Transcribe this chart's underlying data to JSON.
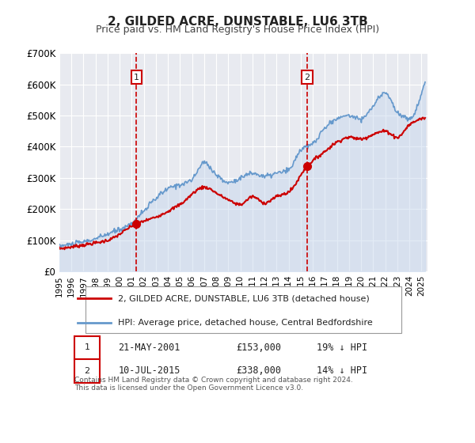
{
  "title": "2, GILDED ACRE, DUNSTABLE, LU6 3TB",
  "subtitle": "Price paid vs. HM Land Registry's House Price Index (HPI)",
  "legend_label_red": "2, GILDED ACRE, DUNSTABLE, LU6 3TB (detached house)",
  "legend_label_blue": "HPI: Average price, detached house, Central Bedfordshire",
  "annotation1_label": "1",
  "annotation1_date": "21-MAY-2001",
  "annotation1_price": "£153,000",
  "annotation1_hpi": "19% ↓ HPI",
  "annotation1_year": 2001.39,
  "annotation1_value": 153000,
  "annotation2_label": "2",
  "annotation2_date": "10-JUL-2015",
  "annotation2_price": "£338,000",
  "annotation2_hpi": "14% ↓ HPI",
  "annotation2_year": 2015.52,
  "annotation2_value": 338000,
  "footer_line1": "Contains HM Land Registry data © Crown copyright and database right 2024.",
  "footer_line2": "This data is licensed under the Open Government Licence v3.0.",
  "ylim": [
    0,
    700000
  ],
  "yticks": [
    0,
    100000,
    200000,
    300000,
    400000,
    500000,
    600000,
    700000
  ],
  "ytick_labels": [
    "£0",
    "£100K",
    "£200K",
    "£300K",
    "£400K",
    "£500K",
    "£600K",
    "£700K"
  ],
  "xlim_start": 1995.0,
  "xlim_end": 2025.5,
  "background_color": "#ffffff",
  "plot_bg_color": "#e8eaf0",
  "grid_color": "#ffffff",
  "red_line_color": "#cc0000",
  "blue_line_color": "#6699cc",
  "vline_color": "#cc0000",
  "box_color": "#cc0000",
  "hpi_blue_fill": "#c8d8ee"
}
